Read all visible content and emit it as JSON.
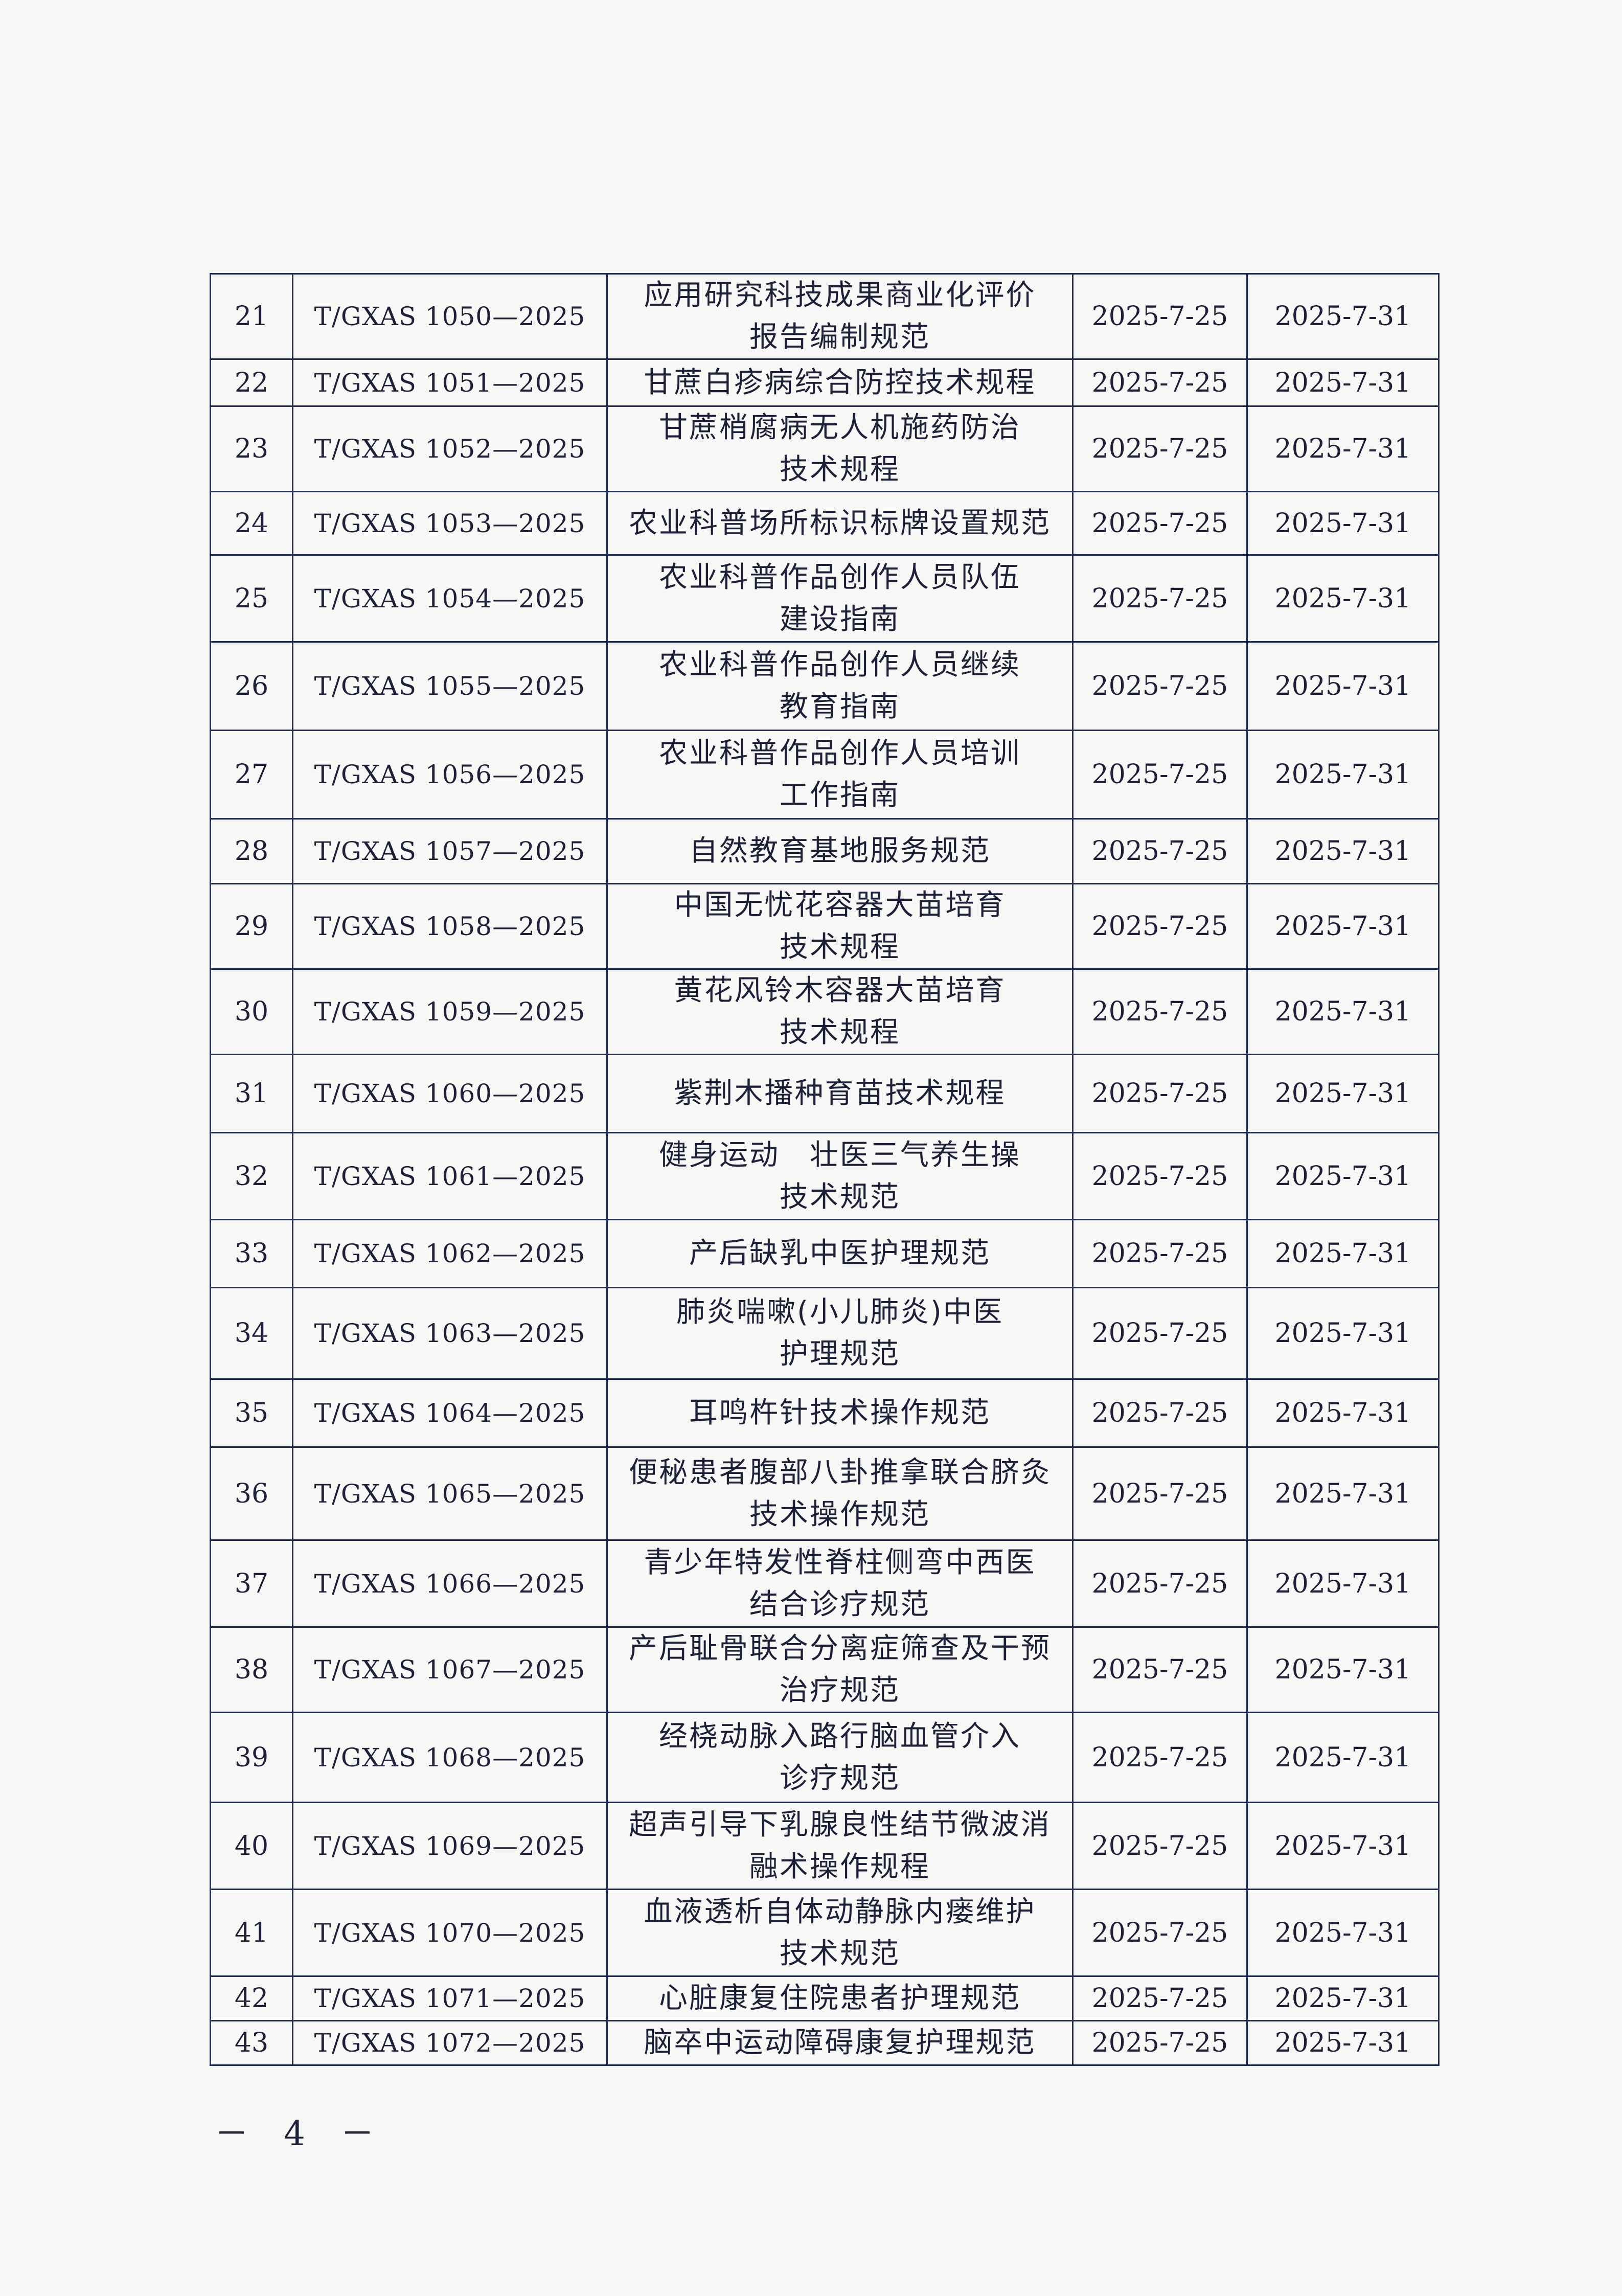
{
  "table": {
    "rows": [
      {
        "no": "21",
        "code": "T/GXAS 1050—2025",
        "title": [
          "应用研究科技成果商业化评价",
          "报告编制规范"
        ],
        "release": "2025-7-25",
        "effective": "2025-7-31"
      },
      {
        "no": "22",
        "code": "T/GXAS 1051—2025",
        "title": [
          "甘蔗白疹病综合防控技术规程"
        ],
        "release": "2025-7-25",
        "effective": "2025-7-31"
      },
      {
        "no": "23",
        "code": "T/GXAS 1052—2025",
        "title": [
          "甘蔗梢腐病无人机施药防治",
          "技术规程"
        ],
        "release": "2025-7-25",
        "effective": "2025-7-31"
      },
      {
        "no": "24",
        "code": "T/GXAS 1053—2025",
        "title": [
          "农业科普场所标识标牌设置规范"
        ],
        "release": "2025-7-25",
        "effective": "2025-7-31"
      },
      {
        "no": "25",
        "code": "T/GXAS 1054—2025",
        "title": [
          "农业科普作品创作人员队伍",
          "建设指南"
        ],
        "release": "2025-7-25",
        "effective": "2025-7-31"
      },
      {
        "no": "26",
        "code": "T/GXAS 1055—2025",
        "title": [
          "农业科普作品创作人员继续",
          "教育指南"
        ],
        "release": "2025-7-25",
        "effective": "2025-7-31"
      },
      {
        "no": "27",
        "code": "T/GXAS 1056—2025",
        "title": [
          "农业科普作品创作人员培训",
          "工作指南"
        ],
        "release": "2025-7-25",
        "effective": "2025-7-31"
      },
      {
        "no": "28",
        "code": "T/GXAS 1057—2025",
        "title": [
          "自然教育基地服务规范"
        ],
        "release": "2025-7-25",
        "effective": "2025-7-31"
      },
      {
        "no": "29",
        "code": "T/GXAS 1058—2025",
        "title": [
          "中国无忧花容器大苗培育",
          "技术规程"
        ],
        "release": "2025-7-25",
        "effective": "2025-7-31"
      },
      {
        "no": "30",
        "code": "T/GXAS 1059—2025",
        "title": [
          "黄花风铃木容器大苗培育",
          "技术规程"
        ],
        "release": "2025-7-25",
        "effective": "2025-7-31"
      },
      {
        "no": "31",
        "code": "T/GXAS 1060—2025",
        "title": [
          "紫荆木播种育苗技术规程"
        ],
        "release": "2025-7-25",
        "effective": "2025-7-31"
      },
      {
        "no": "32",
        "code": "T/GXAS 1061—2025",
        "title": [
          "健身运动　壮医三气养生操",
          "技术规范"
        ],
        "release": "2025-7-25",
        "effective": "2025-7-31"
      },
      {
        "no": "33",
        "code": "T/GXAS 1062—2025",
        "title": [
          "产后缺乳中医护理规范"
        ],
        "release": "2025-7-25",
        "effective": "2025-7-31"
      },
      {
        "no": "34",
        "code": "T/GXAS 1063—2025",
        "title": [
          "肺炎喘嗽(小儿肺炎)中医",
          "护理规范"
        ],
        "release": "2025-7-25",
        "effective": "2025-7-31"
      },
      {
        "no": "35",
        "code": "T/GXAS 1064—2025",
        "title": [
          "耳鸣杵针技术操作规范"
        ],
        "release": "2025-7-25",
        "effective": "2025-7-31"
      },
      {
        "no": "36",
        "code": "T/GXAS 1065—2025",
        "title": [
          "便秘患者腹部八卦推拿联合脐灸",
          "技术操作规范"
        ],
        "release": "2025-7-25",
        "effective": "2025-7-31"
      },
      {
        "no": "37",
        "code": "T/GXAS 1066—2025",
        "title": [
          "青少年特发性脊柱侧弯中西医",
          "结合诊疗规范"
        ],
        "release": "2025-7-25",
        "effective": "2025-7-31"
      },
      {
        "no": "38",
        "code": "T/GXAS 1067—2025",
        "title": [
          "产后耻骨联合分离症筛查及干预",
          "治疗规范"
        ],
        "release": "2025-7-25",
        "effective": "2025-7-31"
      },
      {
        "no": "39",
        "code": "T/GXAS 1068—2025",
        "title": [
          "经桡动脉入路行脑血管介入",
          "诊疗规范"
        ],
        "release": "2025-7-25",
        "effective": "2025-7-31"
      },
      {
        "no": "40",
        "code": "T/GXAS 1069—2025",
        "title": [
          "超声引导下乳腺良性结节微波消",
          "融术操作规程"
        ],
        "release": "2025-7-25",
        "effective": "2025-7-31"
      },
      {
        "no": "41",
        "code": "T/GXAS 1070—2025",
        "title": [
          "血液透析自体动静脉内瘘维护",
          "技术规范"
        ],
        "release": "2025-7-25",
        "effective": "2025-7-31"
      },
      {
        "no": "42",
        "code": "T/GXAS 1071—2025",
        "title": [
          "心脏康复住院患者护理规范"
        ],
        "release": "2025-7-25",
        "effective": "2025-7-31"
      },
      {
        "no": "43",
        "code": "T/GXAS 1072—2025",
        "title": [
          "脑卒中运动障碍康复护理规范"
        ],
        "release": "2025-7-25",
        "effective": "2025-7-31"
      }
    ]
  },
  "footer": {
    "page_number": "－ 4 －"
  }
}
